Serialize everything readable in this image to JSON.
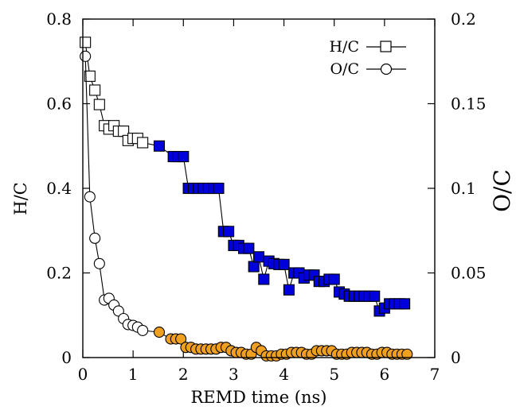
{
  "chart_data": {
    "type": "scatter",
    "xlabel": "REMD time (ns)",
    "ylabel": "H/C",
    "y2label": "O/C",
    "xlim": [
      0,
      7
    ],
    "ylim": [
      0,
      0.8
    ],
    "y2lim": [
      0,
      0.2
    ],
    "x_ticks": [
      "0",
      "1",
      "2",
      "3",
      "4",
      "5",
      "6",
      "7"
    ],
    "y_ticks": [
      "0",
      "0.2",
      "0.4",
      "0.6",
      "0.8"
    ],
    "y2_ticks": [
      "0",
      "0.05",
      "0.1",
      "0.15",
      "0.2"
    ],
    "legend_position": "top-right",
    "colors": {
      "hc_filled": "#0000dd",
      "oc_filled": "#f0a020",
      "stroke": "#000000"
    },
    "series": [
      {
        "name": "H/C",
        "axis": "left",
        "marker": "square",
        "points": [
          [
            0.05,
            0.745
          ],
          [
            0.14,
            0.665
          ],
          [
            0.24,
            0.632
          ],
          [
            0.33,
            0.598
          ],
          [
            0.43,
            0.548
          ],
          [
            0.52,
            0.54
          ],
          [
            0.62,
            0.548
          ],
          [
            0.71,
            0.535
          ],
          [
            0.81,
            0.535
          ],
          [
            0.9,
            0.513
          ],
          [
            1.0,
            0.518
          ],
          [
            1.09,
            0.518
          ],
          [
            1.19,
            0.508
          ],
          [
            1.52,
            0.5
          ],
          [
            1.8,
            0.475
          ],
          [
            1.9,
            0.475
          ],
          [
            2.0,
            0.475
          ],
          [
            2.1,
            0.4
          ],
          [
            2.2,
            0.4
          ],
          [
            2.3,
            0.4
          ],
          [
            2.4,
            0.4
          ],
          [
            2.5,
            0.4
          ],
          [
            2.6,
            0.4
          ],
          [
            2.7,
            0.4
          ],
          [
            2.8,
            0.298
          ],
          [
            2.9,
            0.298
          ],
          [
            3.0,
            0.265
          ],
          [
            3.1,
            0.265
          ],
          [
            3.2,
            0.258
          ],
          [
            3.3,
            0.258
          ],
          [
            3.4,
            0.215
          ],
          [
            3.5,
            0.238
          ],
          [
            3.6,
            0.185
          ],
          [
            3.7,
            0.228
          ],
          [
            3.8,
            0.222
          ],
          [
            3.9,
            0.22
          ],
          [
            4.0,
            0.22
          ],
          [
            4.1,
            0.16
          ],
          [
            4.2,
            0.2
          ],
          [
            4.3,
            0.2
          ],
          [
            4.4,
            0.188
          ],
          [
            4.5,
            0.195
          ],
          [
            4.6,
            0.195
          ],
          [
            4.7,
            0.18
          ],
          [
            4.8,
            0.18
          ],
          [
            4.9,
            0.185
          ],
          [
            5.0,
            0.185
          ],
          [
            5.1,
            0.155
          ],
          [
            5.2,
            0.15
          ],
          [
            5.3,
            0.145
          ],
          [
            5.4,
            0.145
          ],
          [
            5.5,
            0.145
          ],
          [
            5.6,
            0.145
          ],
          [
            5.7,
            0.145
          ],
          [
            5.8,
            0.145
          ],
          [
            5.9,
            0.11
          ],
          [
            6.0,
            0.117
          ],
          [
            6.1,
            0.127
          ],
          [
            6.2,
            0.127
          ],
          [
            6.3,
            0.127
          ],
          [
            6.4,
            0.127
          ]
        ]
      },
      {
        "name": "O/C",
        "axis": "right",
        "marker": "circle",
        "points": [
          [
            0.05,
            0.178
          ],
          [
            0.14,
            0.095
          ],
          [
            0.24,
            0.0705
          ],
          [
            0.33,
            0.0555
          ],
          [
            0.43,
            0.034
          ],
          [
            0.52,
            0.035
          ],
          [
            0.62,
            0.031
          ],
          [
            0.71,
            0.0275
          ],
          [
            0.81,
            0.023
          ],
          [
            0.9,
            0.0195
          ],
          [
            1.0,
            0.019
          ],
          [
            1.09,
            0.018
          ],
          [
            1.19,
            0.016
          ],
          [
            1.52,
            0.015
          ],
          [
            1.75,
            0.011
          ],
          [
            1.85,
            0.011
          ],
          [
            1.95,
            0.011
          ],
          [
            2.05,
            0.006
          ],
          [
            2.15,
            0.006
          ],
          [
            2.25,
            0.005
          ],
          [
            2.35,
            0.005
          ],
          [
            2.45,
            0.005
          ],
          [
            2.55,
            0.005
          ],
          [
            2.65,
            0.005
          ],
          [
            2.75,
            0.006
          ],
          [
            2.85,
            0.006
          ],
          [
            2.95,
            0.004
          ],
          [
            3.05,
            0.003
          ],
          [
            3.15,
            0.003
          ],
          [
            3.25,
            0.002
          ],
          [
            3.35,
            0.002
          ],
          [
            3.45,
            0.006
          ],
          [
            3.55,
            0.004
          ],
          [
            3.65,
            0.001
          ],
          [
            3.75,
            0.001
          ],
          [
            3.85,
            0.001
          ],
          [
            3.95,
            0.002
          ],
          [
            4.05,
            0.002
          ],
          [
            4.15,
            0.003
          ],
          [
            4.25,
            0.003
          ],
          [
            4.35,
            0.003
          ],
          [
            4.45,
            0.002
          ],
          [
            4.55,
            0.002
          ],
          [
            4.65,
            0.004
          ],
          [
            4.75,
            0.004
          ],
          [
            4.85,
            0.004
          ],
          [
            4.95,
            0.004
          ],
          [
            5.05,
            0.002
          ],
          [
            5.15,
            0.002
          ],
          [
            5.25,
            0.002
          ],
          [
            5.35,
            0.003
          ],
          [
            5.45,
            0.003
          ],
          [
            5.55,
            0.003
          ],
          [
            5.65,
            0.003
          ],
          [
            5.75,
            0.002
          ],
          [
            5.85,
            0.002
          ],
          [
            5.95,
            0.003
          ],
          [
            6.05,
            0.003
          ],
          [
            6.15,
            0.002
          ],
          [
            6.25,
            0.002
          ],
          [
            6.35,
            0.002
          ],
          [
            6.45,
            0.002
          ]
        ]
      }
    ],
    "filled_from_index": 13
  }
}
